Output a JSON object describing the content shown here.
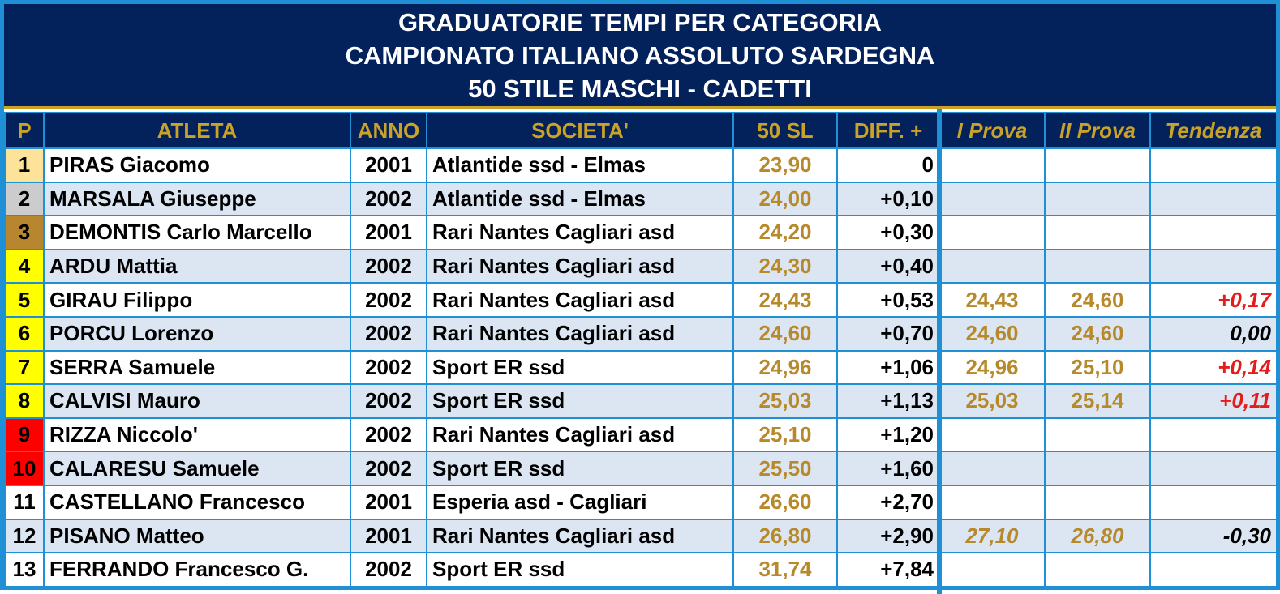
{
  "title": {
    "line1": "GRADUATORIE TEMPI PER CATEGORIA",
    "line2": "CAMPIONATO ITALIANO ASSOLUTO SARDEGNA",
    "line3": "50 STILE MASCHI - CADETTI"
  },
  "headers": {
    "pos": "P",
    "athlete": "ATLETA",
    "year": "ANNO",
    "club": "SOCIETA'",
    "time": "50 SL",
    "diff": "DIFF. +",
    "trial1": "I Prova",
    "trial2": "II Prova",
    "trend": "Tendenza"
  },
  "colors": {
    "navy": "#03215b",
    "gold_text": "#c9a227",
    "time_text": "#b8892a",
    "border_blue": "#1f8fd6",
    "row_alt": "#dbe6f2",
    "medal_gold": "#fde29a",
    "medal_silver": "#cccccc",
    "medal_bronze": "#b8862e",
    "final_yellow": "#ffff00",
    "reserve_red": "#ff0000",
    "trend_red": "#e51c1c"
  },
  "rows": [
    {
      "pos": "1",
      "athlete": "PIRAS Giacomo",
      "year": "2001",
      "club": "Atlantide ssd - Elmas",
      "time": "23,90",
      "diff": "0",
      "trial1": "",
      "trial2": "",
      "trend": ""
    },
    {
      "pos": "2",
      "athlete": "MARSALA Giuseppe",
      "year": "2002",
      "club": "Atlantide ssd - Elmas",
      "time": "24,00",
      "diff": "+0,10",
      "trial1": "",
      "trial2": "",
      "trend": ""
    },
    {
      "pos": "3",
      "athlete": "DEMONTIS Carlo Marcello",
      "year": "2001",
      "club": "Rari Nantes Cagliari asd",
      "time": "24,20",
      "diff": "+0,30",
      "trial1": "",
      "trial2": "",
      "trend": ""
    },
    {
      "pos": "4",
      "athlete": "ARDU Mattia",
      "year": "2002",
      "club": "Rari Nantes Cagliari asd",
      "time": "24,30",
      "diff": "+0,40",
      "trial1": "",
      "trial2": "",
      "trend": ""
    },
    {
      "pos": "5",
      "athlete": "GIRAU Filippo",
      "year": "2002",
      "club": "Rari Nantes Cagliari asd",
      "time": "24,43",
      "diff": "+0,53",
      "trial1": "24,43",
      "trial2": "24,60",
      "trend": "+0,17"
    },
    {
      "pos": "6",
      "athlete": "PORCU Lorenzo",
      "year": "2002",
      "club": "Rari Nantes Cagliari asd",
      "time": "24,60",
      "diff": "+0,70",
      "trial1": "24,60",
      "trial2": "24,60",
      "trend": "0,00"
    },
    {
      "pos": "7",
      "athlete": "SERRA Samuele",
      "year": "2002",
      "club": "Sport ER ssd",
      "time": "24,96",
      "diff": "+1,06",
      "trial1": "24,96",
      "trial2": "25,10",
      "trend": "+0,14"
    },
    {
      "pos": "8",
      "athlete": "CALVISI Mauro",
      "year": "2002",
      "club": "Sport ER ssd",
      "time": "25,03",
      "diff": "+1,13",
      "trial1": "25,03",
      "trial2": "25,14",
      "trend": "+0,11"
    },
    {
      "pos": "9",
      "athlete": "RIZZA Niccolo'",
      "year": "2002",
      "club": "Rari Nantes Cagliari asd",
      "time": "25,10",
      "diff": "+1,20",
      "trial1": "",
      "trial2": "",
      "trend": ""
    },
    {
      "pos": "10",
      "athlete": "CALARESU Samuele",
      "year": "2002",
      "club": "Sport ER ssd",
      "time": "25,50",
      "diff": "+1,60",
      "trial1": "",
      "trial2": "",
      "trend": ""
    },
    {
      "pos": "11",
      "athlete": "CASTELLANO Francesco",
      "year": "2001",
      "club": "Esperia asd - Cagliari",
      "time": "26,60",
      "diff": "+2,70",
      "trial1": "",
      "trial2": "",
      "trend": ""
    },
    {
      "pos": "12",
      "athlete": "PISANO Matteo",
      "year": "2001",
      "club": "Rari Nantes Cagliari asd",
      "time": "26,80",
      "diff": "+2,90",
      "trial1": "27,10",
      "trial2": "26,80",
      "trend": "-0,30"
    },
    {
      "pos": "13",
      "athlete": "FERRANDO Francesco G.",
      "year": "2002",
      "club": "Sport ER ssd",
      "time": "31,74",
      "diff": "+7,84",
      "trial1": "",
      "trial2": "",
      "trend": ""
    }
  ]
}
